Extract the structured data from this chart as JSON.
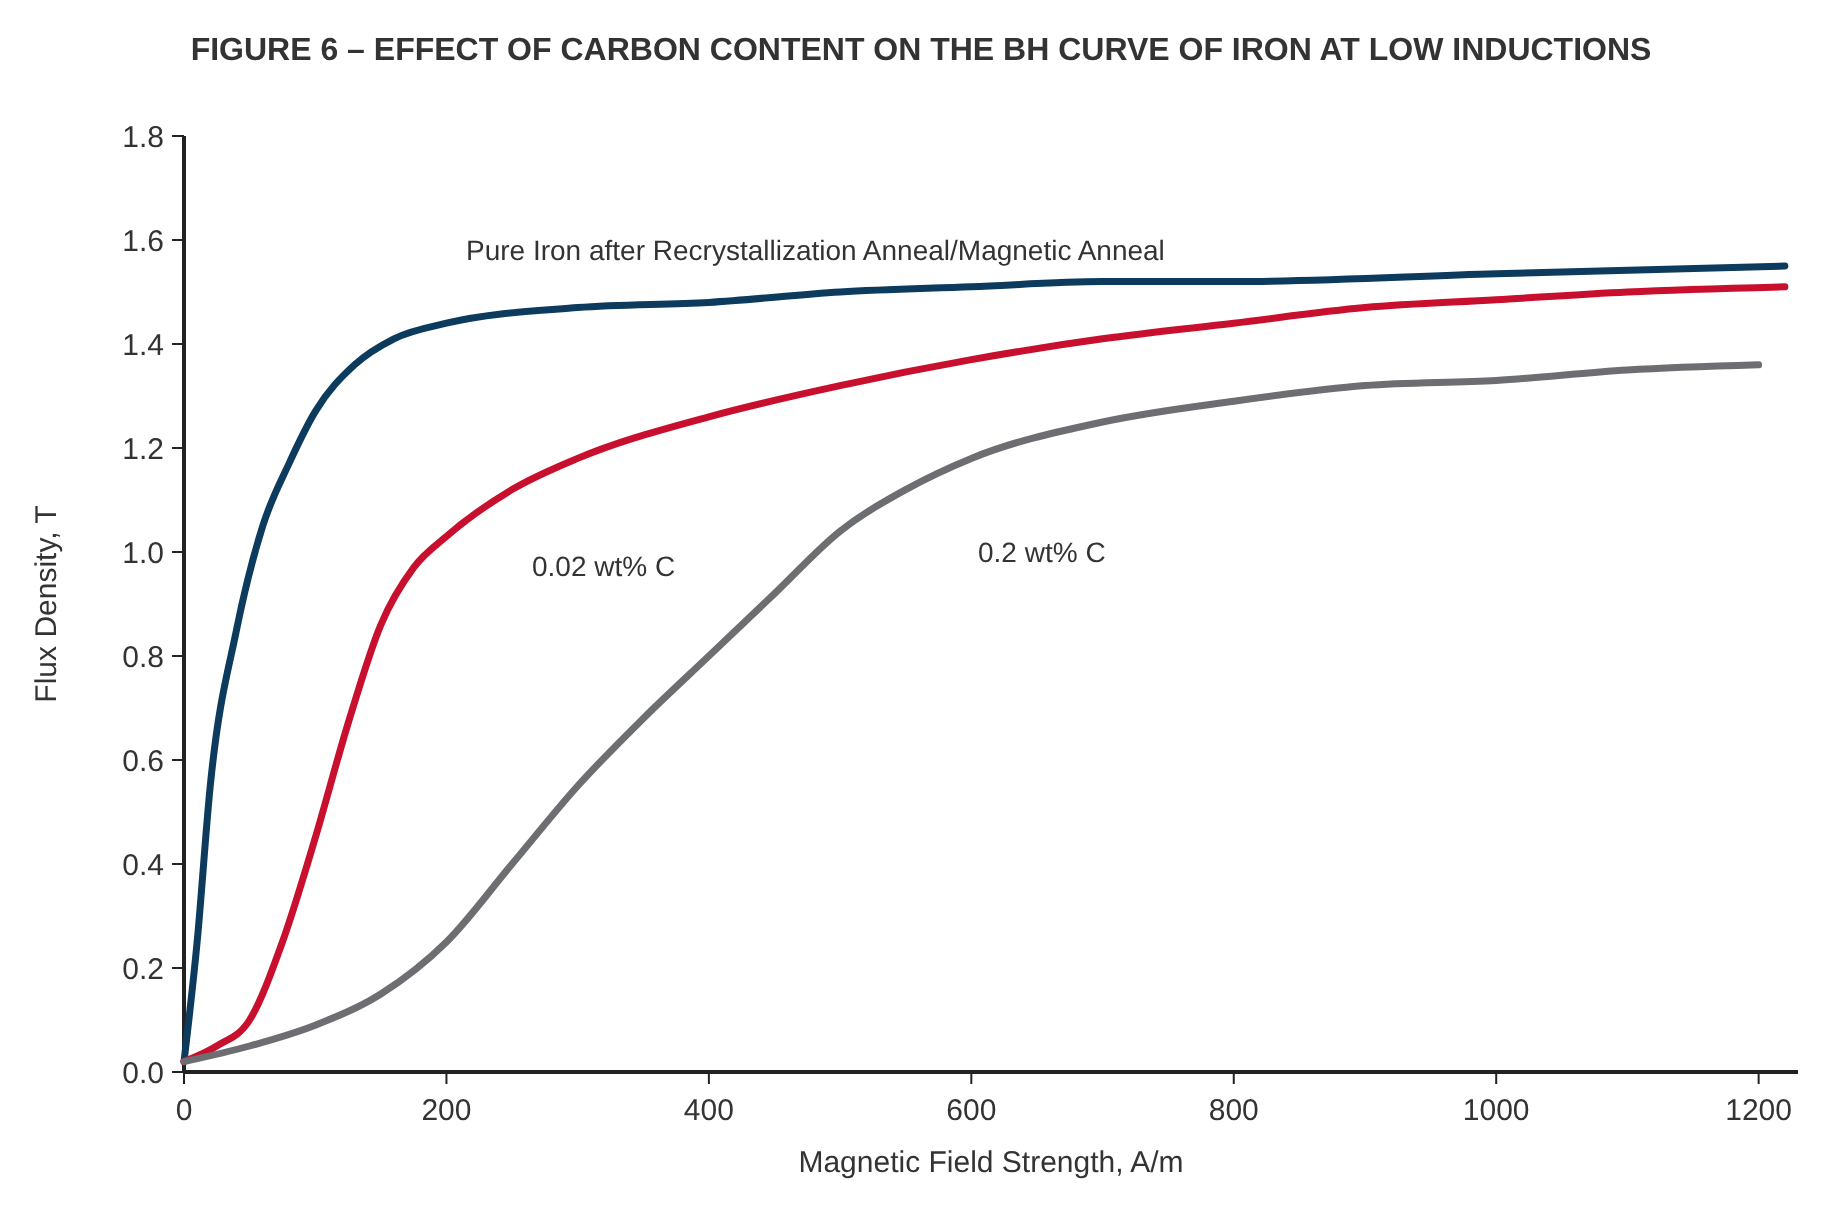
{
  "chart_data": {
    "type": "line",
    "title": "FIGURE 6 – EFFECT OF CARBON CONTENT ON THE BH CURVE OF IRON AT LOW INDUCTIONS",
    "xlabel": "Magnetic Field Strength, A/m",
    "ylabel": "Flux Density, T",
    "xlim": [
      0,
      1230
    ],
    "ylim": [
      0,
      1.8
    ],
    "xticks": [
      0,
      200,
      400,
      600,
      800,
      1000,
      1200
    ],
    "yticks": [
      {
        "value": 0,
        "label": "0.0"
      },
      {
        "value": 0.2,
        "label": "0.2"
      },
      {
        "value": 0.4,
        "label": "0.4"
      },
      {
        "value": 0.6,
        "label": "0.6"
      },
      {
        "value": 0.8,
        "label": "0.8"
      },
      {
        "value": 1,
        "label": "1.0"
      },
      {
        "value": 1.2,
        "label": "1.2"
      },
      {
        "value": 1.4,
        "label": "1.4"
      },
      {
        "value": 1.6,
        "label": "1.6"
      },
      {
        "value": 1.8,
        "label": "1.8"
      }
    ],
    "grid": false,
    "legend": false,
    "marker": "none",
    "line_style": "solid",
    "series": [
      {
        "name": "Pure Iron after Recrystallization Anneal/Magnetic Anneal",
        "color": "#0d3b5e",
        "x": [
          0,
          10,
          20,
          40,
          60,
          80,
          100,
          130,
          160,
          200,
          300,
          400,
          500,
          600,
          700,
          800,
          1000,
          1220
        ],
        "values": [
          0.02,
          0.25,
          0.55,
          0.85,
          1.05,
          1.17,
          1.27,
          1.36,
          1.41,
          1.44,
          1.47,
          1.48,
          1.5,
          1.51,
          1.52,
          1.52,
          1.535,
          1.55
        ]
      },
      {
        "name": "0.02 wt% C",
        "color": "#c8102e",
        "x": [
          0,
          25,
          50,
          75,
          100,
          125,
          150,
          175,
          200,
          250,
          300,
          400,
          500,
          600,
          700,
          800,
          900,
          1000,
          1100,
          1220
        ],
        "values": [
          0.02,
          0.05,
          0.1,
          0.25,
          0.45,
          0.67,
          0.86,
          0.97,
          1.03,
          1.12,
          1.18,
          1.26,
          1.32,
          1.37,
          1.41,
          1.44,
          1.47,
          1.485,
          1.5,
          1.51
        ]
      },
      {
        "name": "0.2 wt% C",
        "color": "#6d6e71",
        "x": [
          0,
          50,
          100,
          150,
          200,
          250,
          300,
          350,
          400,
          450,
          500,
          550,
          600,
          700,
          800,
          900,
          1000,
          1100,
          1200
        ],
        "values": [
          0.02,
          0.05,
          0.09,
          0.15,
          0.25,
          0.4,
          0.55,
          0.68,
          0.8,
          0.92,
          1.04,
          1.12,
          1.18,
          1.25,
          1.29,
          1.32,
          1.33,
          1.35,
          1.36
        ]
      }
    ]
  }
}
